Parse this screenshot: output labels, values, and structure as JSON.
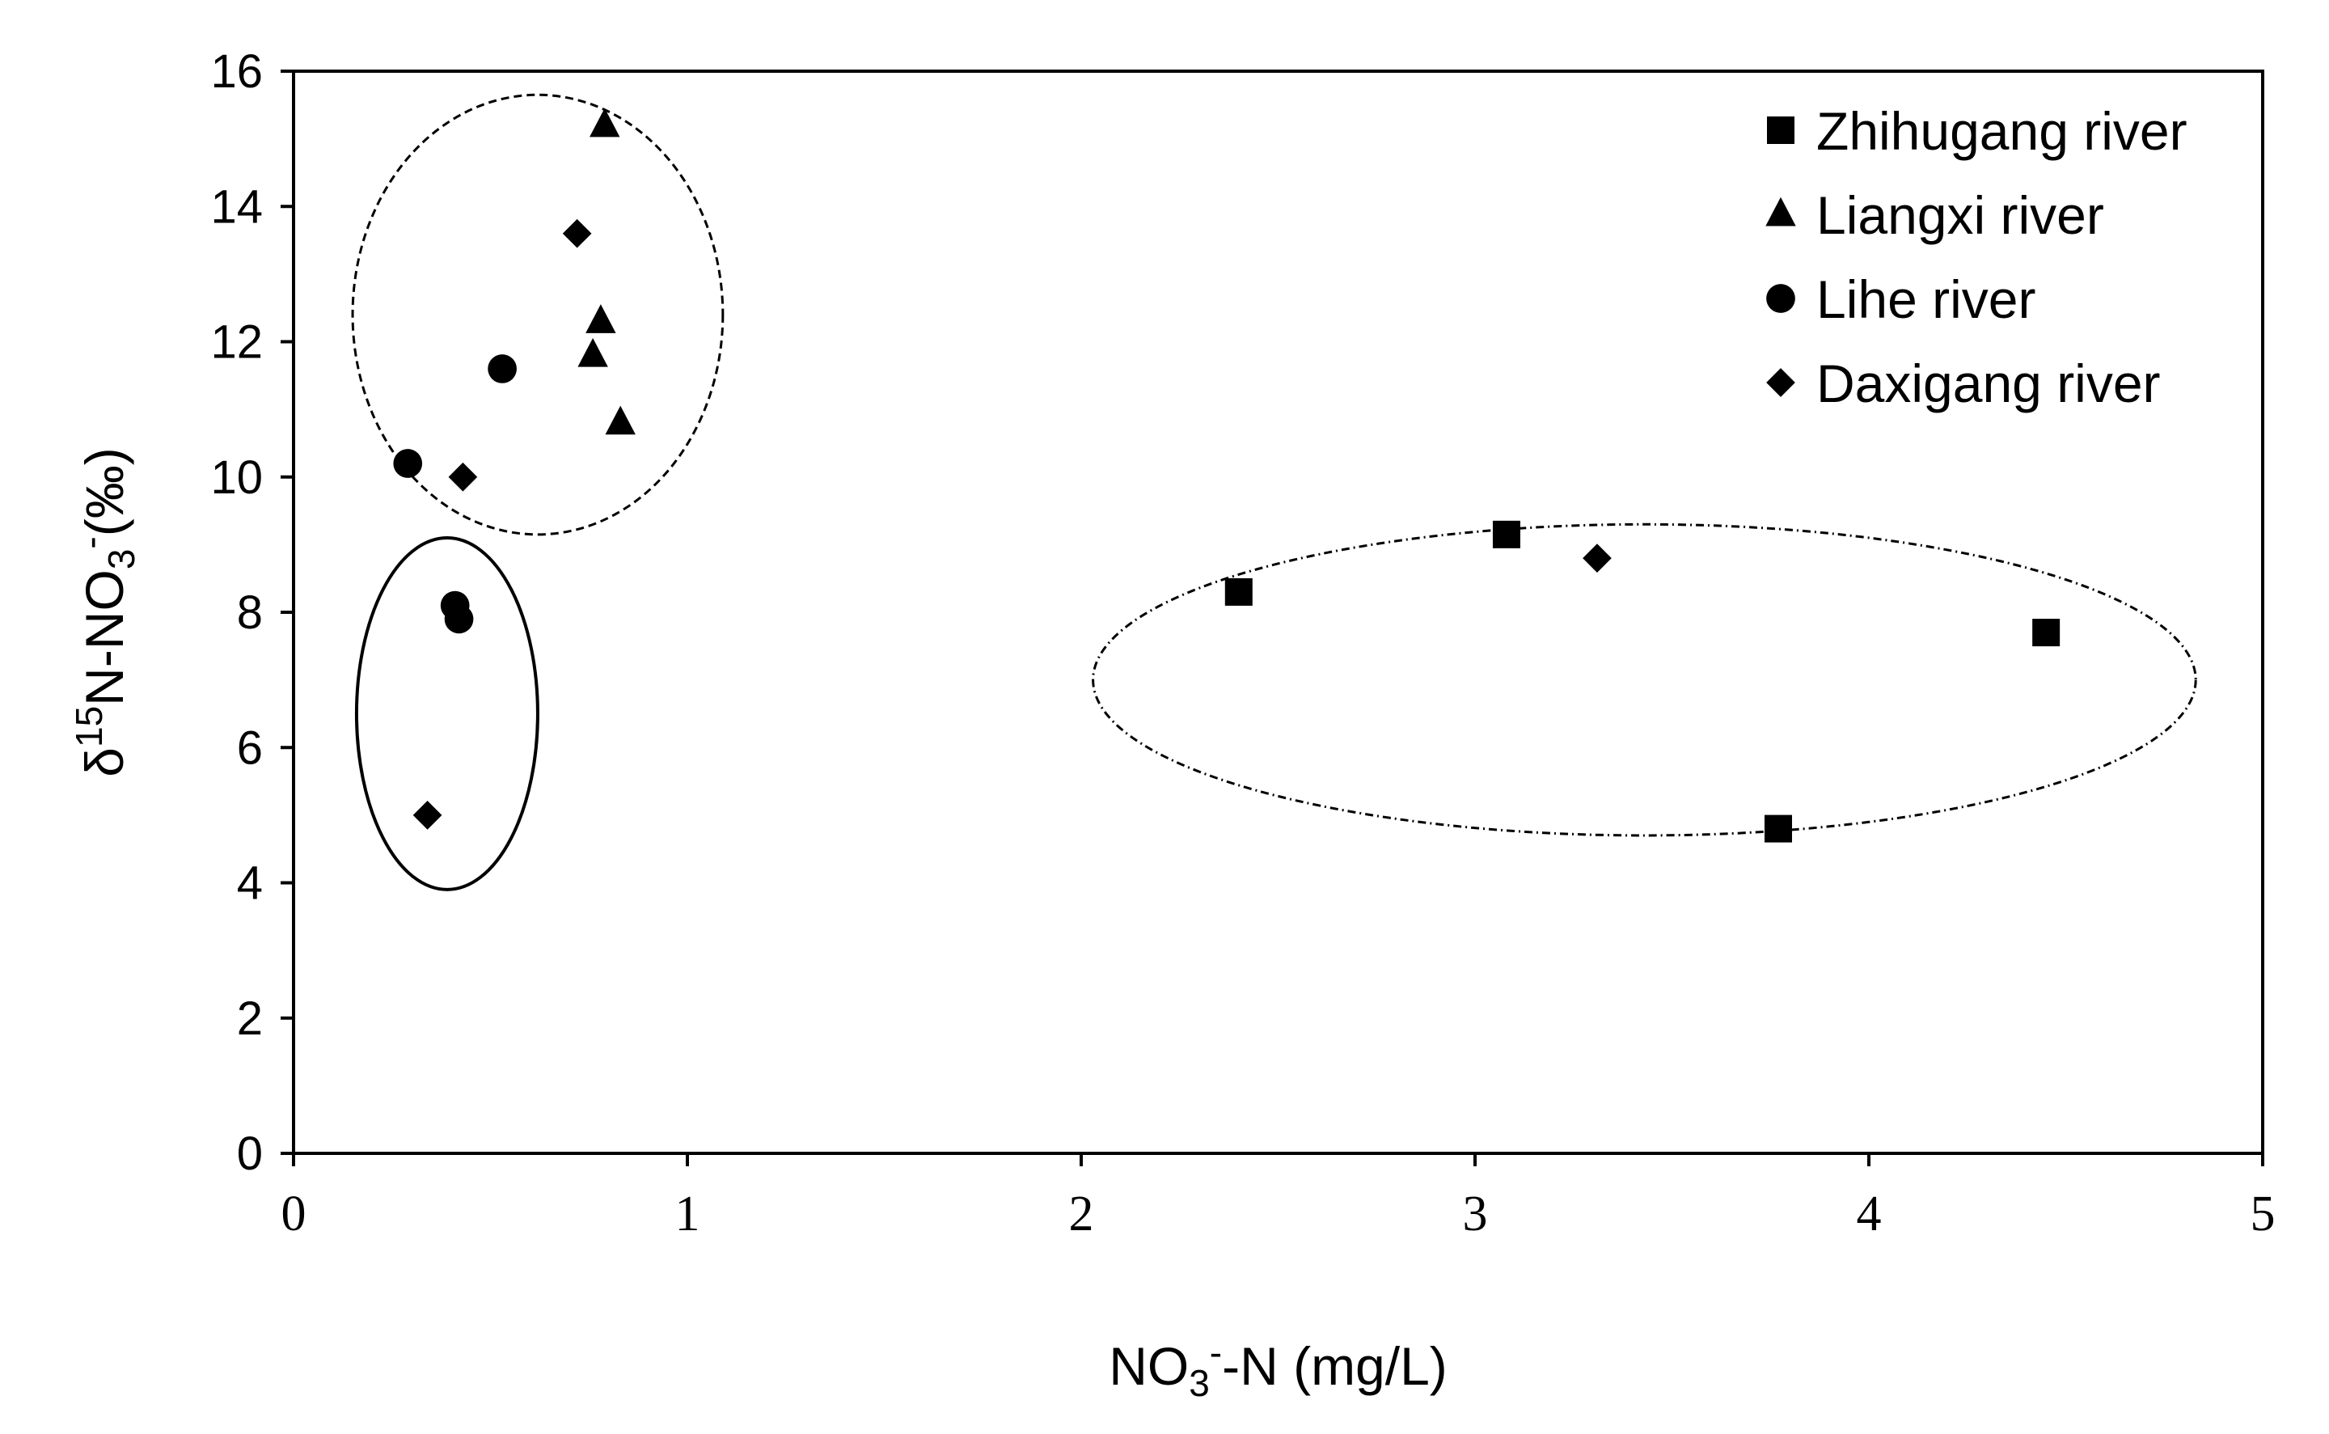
{
  "chart_data": {
    "type": "scatter",
    "title": "",
    "xlabel": {
      "main": "NO",
      "sub": "3",
      "sup": "-",
      "rest": "-N (mg/L)"
    },
    "ylabel": {
      "prefix": "δ",
      "sup1": "15",
      "mid": "N-NO",
      "sub": "3",
      "sup2": "-",
      "rest": "(‰)"
    },
    "xlim": [
      0,
      5
    ],
    "ylim": [
      0,
      16
    ],
    "xticks": [
      0,
      1,
      2,
      3,
      4,
      5
    ],
    "yticks": [
      0,
      2,
      4,
      6,
      8,
      10,
      12,
      14,
      16
    ],
    "grid": false,
    "legend_position": "top-right",
    "series": [
      {
        "name": "Zhihugang river",
        "marker": "square",
        "color": "#000000",
        "points": [
          {
            "x": 2.4,
            "y": 8.3
          },
          {
            "x": 3.08,
            "y": 9.15
          },
          {
            "x": 3.77,
            "y": 4.8
          },
          {
            "x": 4.45,
            "y": 7.7
          }
        ]
      },
      {
        "name": "Liangxi river",
        "marker": "triangle",
        "color": "#000000",
        "points": [
          {
            "x": 0.79,
            "y": 15.2
          },
          {
            "x": 0.78,
            "y": 12.3
          },
          {
            "x": 0.76,
            "y": 11.8
          },
          {
            "x": 0.83,
            "y": 10.8
          }
        ]
      },
      {
        "name": "Lihe river",
        "marker": "circle",
        "color": "#000000",
        "points": [
          {
            "x": 0.53,
            "y": 11.6
          },
          {
            "x": 0.29,
            "y": 10.2
          },
          {
            "x": 0.41,
            "y": 8.1
          },
          {
            "x": 0.42,
            "y": 7.9
          }
        ]
      },
      {
        "name": "Daxigang river",
        "marker": "diamond",
        "color": "#000000",
        "points": [
          {
            "x": 0.72,
            "y": 13.6
          },
          {
            "x": 0.43,
            "y": 10.0
          },
          {
            "x": 0.34,
            "y": 5.0
          },
          {
            "x": 3.31,
            "y": 8.8
          }
        ]
      }
    ],
    "annotations": [
      {
        "shape": "ellipse",
        "style": "dashed",
        "cx": 0.62,
        "cy": 12.4,
        "rx": 0.47,
        "ry": 3.25
      },
      {
        "shape": "ellipse",
        "style": "solid",
        "cx": 0.39,
        "cy": 6.5,
        "rx": 0.23,
        "ry": 2.6
      },
      {
        "shape": "ellipse",
        "style": "dash-dot",
        "cx": 3.43,
        "cy": 7.0,
        "rx": 1.4,
        "ry": 2.3
      }
    ]
  }
}
